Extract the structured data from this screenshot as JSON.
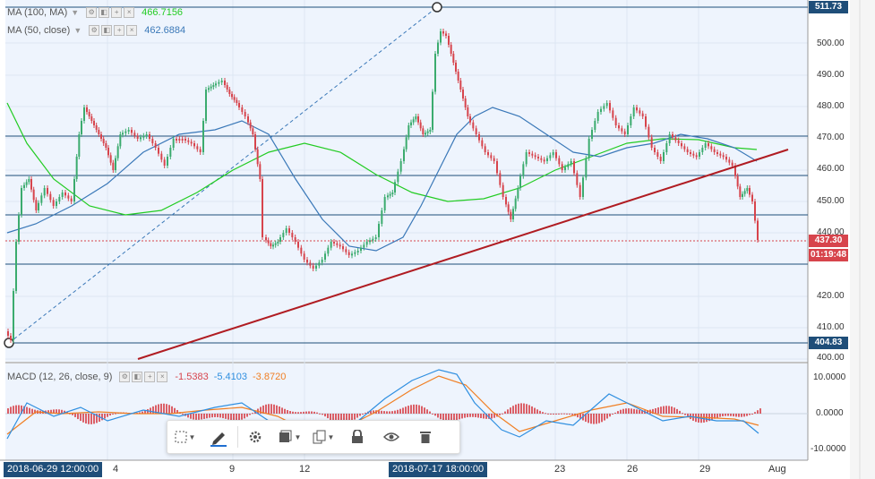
{
  "legend": {
    "ma100": {
      "label": "MA (100, MA)",
      "value": "466.7156",
      "color": "#22cc22"
    },
    "ma50": {
      "label": "MA (50, close)",
      "value": "462.6884",
      "color": "#3a78b8"
    },
    "macd": {
      "label": "MACD (12, 26, close, 9)",
      "hist": "-1.5383",
      "macd": "-5.4103",
      "signal": "-3.8720"
    }
  },
  "price_axis": [
    "500.00",
    "490.00",
    "480.00",
    "470.00",
    "460.00",
    "450.00",
    "440.00",
    "420.00",
    "410.00",
    "400.00"
  ],
  "macd_axis": [
    "10.0000",
    "0.0000",
    "-10.0000"
  ],
  "price_tags": {
    "high": "511.73",
    "last": "437.30",
    "countdown": "01:19:48",
    "low": "404.83"
  },
  "time_axis": {
    "labels": [
      "4",
      "9",
      "12",
      "23",
      "26",
      "29",
      "Aug"
    ],
    "cursor_left": "2018-06-29 12:00:00",
    "cursor_right": "2018-07-17 18:00:00"
  },
  "toolbar": {
    "items": [
      "select-icon",
      "pencil-icon",
      "gear-icon",
      "layers-icon",
      "clone-icon",
      "lock-icon",
      "eye-icon",
      "trash-icon"
    ]
  },
  "colors": {
    "up": "#3bab6e",
    "down": "#d7444c",
    "trendline": "#b01c22",
    "hline": "#1f4e79",
    "ma100": "#22cc22",
    "ma50": "#3a78b8",
    "macd_line": "#2f8fe0",
    "signal_line": "#f07e22"
  }
}
